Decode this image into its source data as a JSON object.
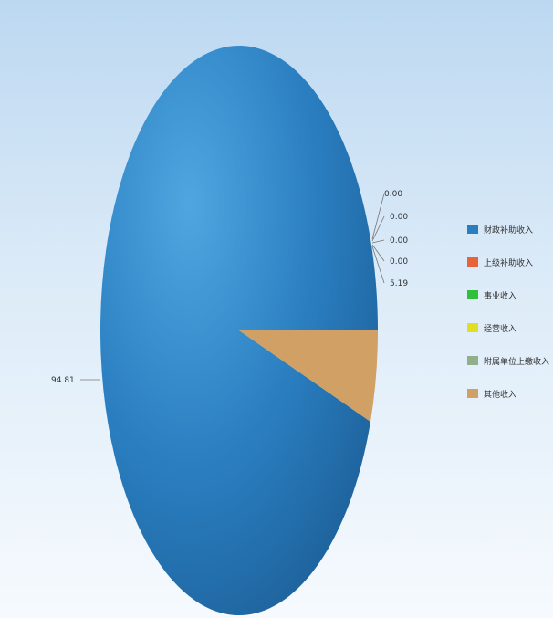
{
  "chart_data": {
    "type": "pie",
    "series": [
      {
        "name": "财政补助收入",
        "value": 94.81,
        "label": "94.81",
        "color": "#2a7ec0"
      },
      {
        "name": "上级补助收入",
        "value": 0.0,
        "label": "0.00",
        "color": "#e8623a"
      },
      {
        "name": "事业收入",
        "value": 0.0,
        "label": "0.00",
        "color": "#2fbf3a"
      },
      {
        "name": "经营收入",
        "value": 0.0,
        "label": "0.00",
        "color": "#e2df22"
      },
      {
        "name": "附属单位上缴收入",
        "value": 0.0,
        "label": "0.00",
        "color": "#8fb08a"
      },
      {
        "name": "其他收入",
        "value": 5.19,
        "label": "5.19",
        "color": "#d0a064"
      }
    ],
    "legend_position": "right"
  }
}
